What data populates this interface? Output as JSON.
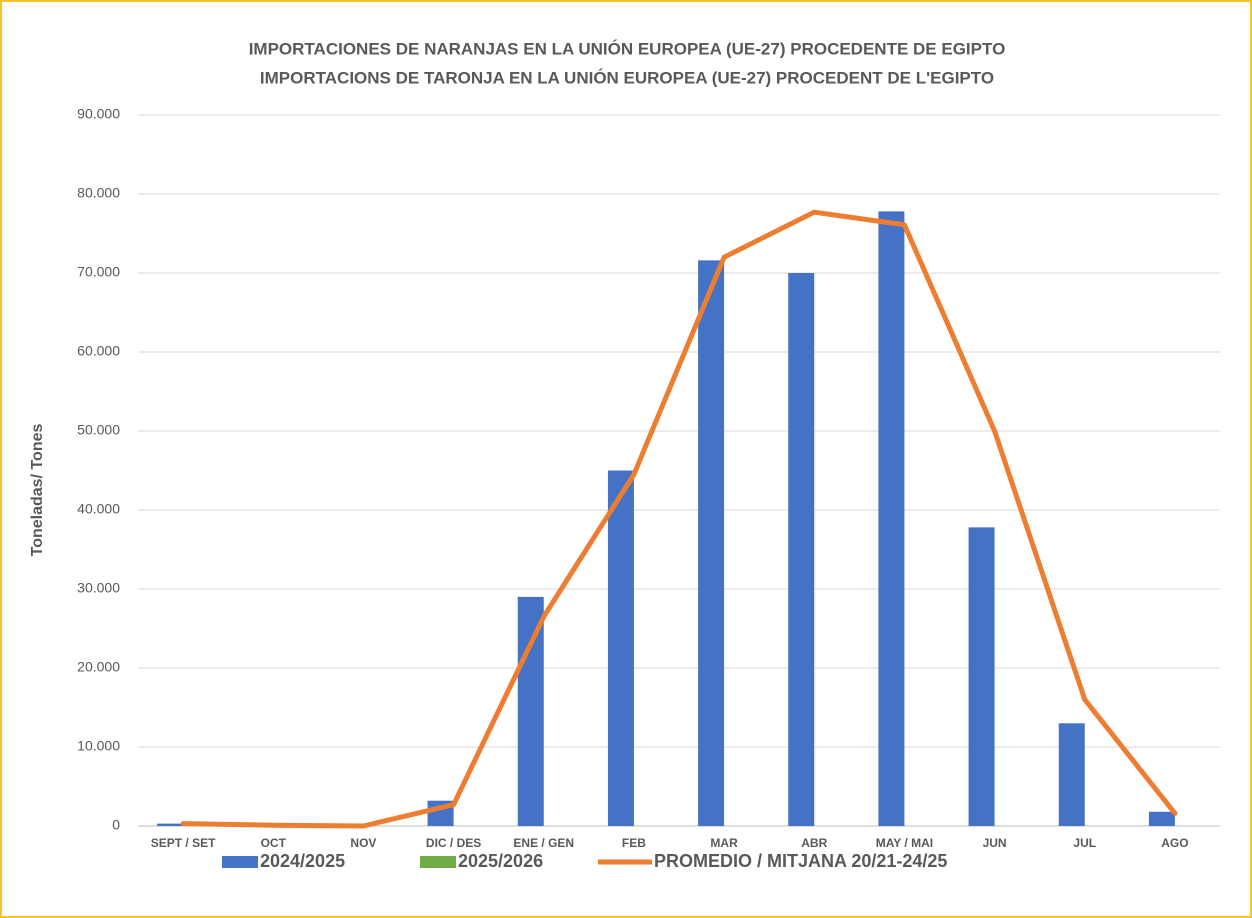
{
  "chart_data": {
    "type": "bar-line",
    "title": [
      "IMPORTACIONES DE NARANJAS EN LA UNIÓN EUROPEA (UE-27) PROCEDENTE DE EGIPTO",
      "IMPORTACIONS DE TARONJA EN LA UNIÓN EUROPEA (UE-27) PROCEDENT DE L'EGIPTO"
    ],
    "y_label": "Toneladas/ Tones",
    "categories": [
      "SEPT / SET",
      "OCT",
      "NOV",
      "DIC / DES",
      "ENE / GEN",
      "FEB",
      "MAR",
      "ABR",
      "MAY / MAI",
      "JUN",
      "JUL",
      "AGO"
    ],
    "series": [
      {
        "name": "2024/2025",
        "type": "bar",
        "color": "#4472c4",
        "values": [
          300,
          0,
          0,
          3200,
          29000,
          45000,
          71600,
          70000,
          77800,
          37800,
          13000,
          1800
        ]
      },
      {
        "name": "2025/2026",
        "type": "bar",
        "color": "#70ad47",
        "values": [
          null,
          null,
          null,
          null,
          null,
          null,
          null,
          null,
          null,
          null,
          null,
          null
        ]
      },
      {
        "name": "PROMEDIO / MITJANA  20/21-24/25",
        "type": "line",
        "color": "#ed7d31",
        "values": [
          300,
          100,
          0,
          2700,
          26500,
          44500,
          72000,
          77700,
          76100,
          50000,
          16000,
          1600
        ]
      }
    ],
    "ylim": [
      0,
      90000
    ],
    "yticks": [
      0,
      {
        "value": 10000,
        "label": "10.000"
      },
      {
        "value": 20000,
        "label": "20.000"
      },
      {
        "value": 30000,
        "label": "30.000"
      },
      {
        "value": 40000,
        "label": "40.000"
      },
      {
        "value": 50000,
        "label": "50.000"
      },
      {
        "value": 60000,
        "label": "60.000"
      },
      {
        "value": 70000,
        "label": "70.000"
      },
      {
        "value": 80000,
        "label": "80.000"
      },
      {
        "value": 90000,
        "label": "90.000"
      }
    ],
    "grid": true,
    "legend": "bottom"
  }
}
